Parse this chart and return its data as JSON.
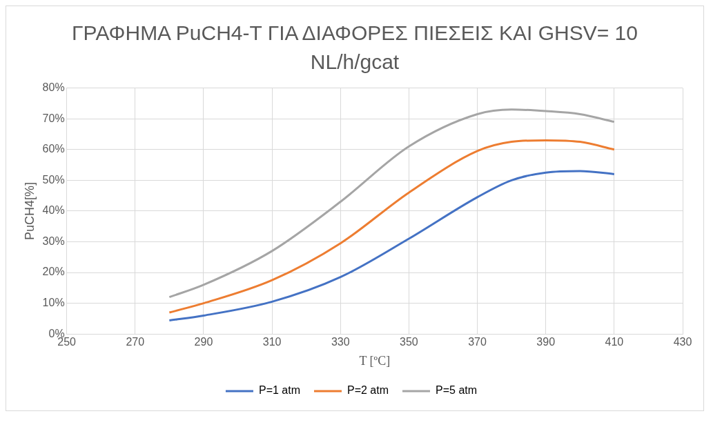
{
  "chart_data": {
    "type": "line",
    "title": "ΓΡΑΦΗΜΑ PuCH4-T ΓΙΑ ΔΙΑΦΟΡΕΣ ΠΙΕΣΕΙΣ ΚΑΙ GHSV= 10 NL/h/gcat",
    "xlabel": "T [ºC]",
    "ylabel": "PuCH4[%]",
    "x": [
      280,
      290,
      310,
      330,
      350,
      370,
      380,
      390,
      400,
      410
    ],
    "series": [
      {
        "name": "P=1 atm",
        "color": "#4472c4",
        "values": [
          4.4,
          6,
          10.5,
          18.5,
          31,
          44.5,
          50,
          52.5,
          53,
          52
        ]
      },
      {
        "name": "P=2 atm",
        "color": "#ed7d31",
        "values": [
          7,
          10,
          17.5,
          29.5,
          46,
          59.5,
          62.5,
          63,
          62.5,
          60
        ]
      },
      {
        "name": "P=5 atm",
        "color": "#a5a5a5",
        "values": [
          12,
          16,
          27,
          43,
          61,
          71.5,
          73,
          72.5,
          71.5,
          69
        ]
      }
    ],
    "xlim": [
      250,
      430
    ],
    "xticks": [
      250,
      270,
      290,
      310,
      330,
      350,
      370,
      390,
      410,
      430
    ],
    "ylim": [
      0,
      80
    ],
    "yticks": [
      {
        "value": 0,
        "label": "0%"
      },
      {
        "value": 10,
        "label": "10%"
      },
      {
        "value": 20,
        "label": "20%"
      },
      {
        "value": 30,
        "label": "30%"
      },
      {
        "value": 40,
        "label": "40%"
      },
      {
        "value": 50,
        "label": "50%"
      },
      {
        "value": 60,
        "label": "60%"
      },
      {
        "value": 70,
        "label": "70%"
      },
      {
        "value": 80,
        "label": "80%"
      }
    ],
    "grid": true,
    "legend": "bottom",
    "marker": "none",
    "line_style": "solid"
  }
}
